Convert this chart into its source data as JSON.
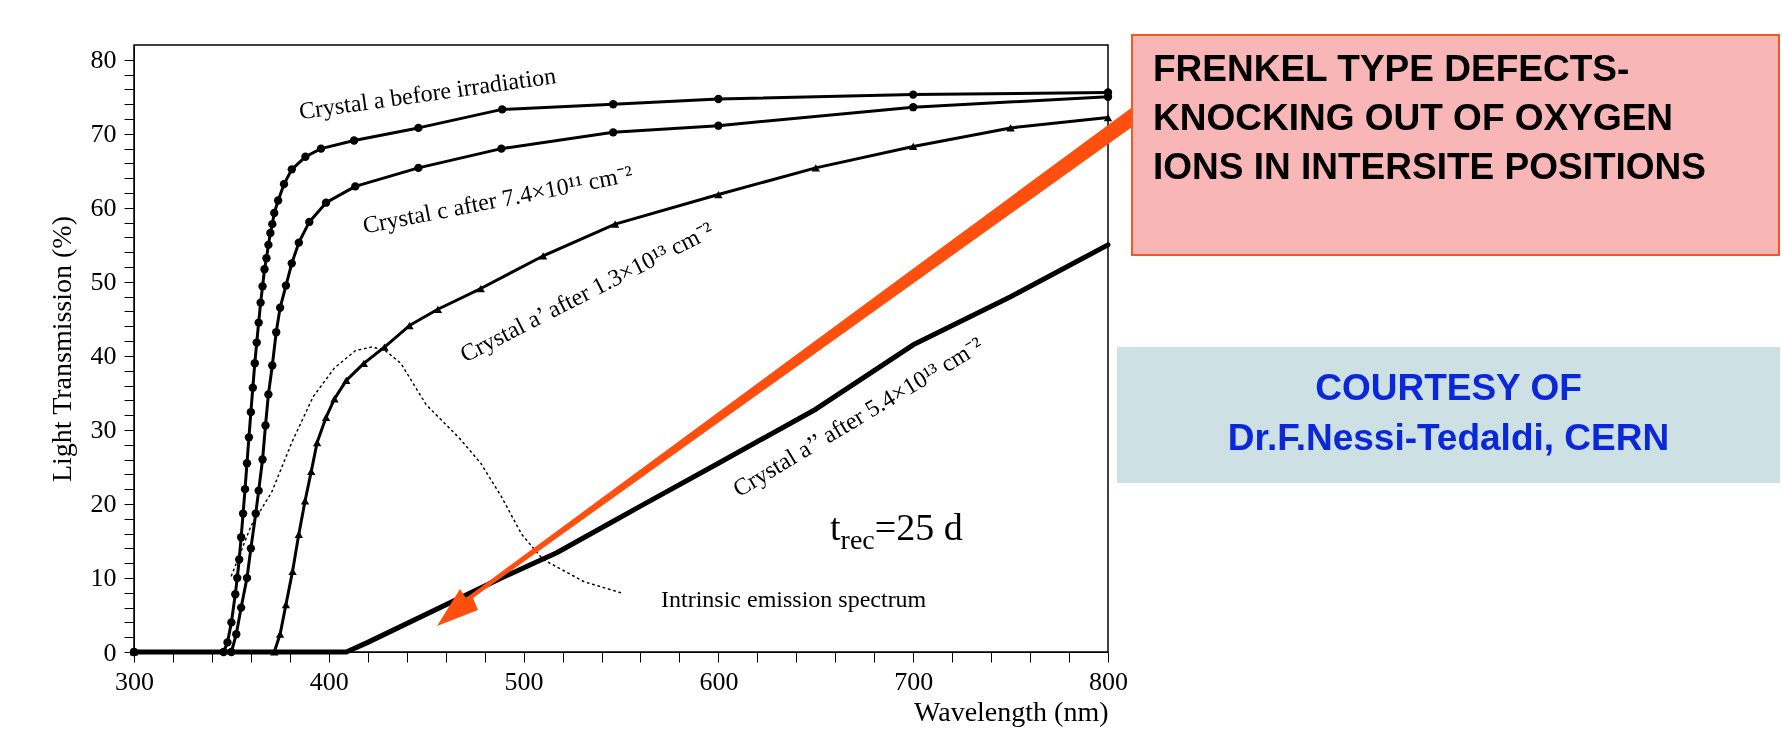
{
  "chart_data": {
    "type": "line",
    "xlabel": "Wavelength (nm)",
    "ylabel": "Light Transmission (%)",
    "xlim": [
      300,
      800
    ],
    "ylim": [
      0,
      82
    ],
    "xticks": [
      300,
      {
        "value": 320,
        "label": null
      },
      {
        "value": 340,
        "label": null
      },
      {
        "value": 360,
        "label": null
      },
      {
        "value": 380,
        "label": null
      },
      400,
      {
        "value": 420,
        "label": null
      },
      {
        "value": 440,
        "label": null
      },
      {
        "value": 460,
        "label": null
      },
      {
        "value": 480,
        "label": null
      },
      500,
      {
        "value": 520,
        "label": null
      },
      {
        "value": 540,
        "label": null
      },
      {
        "value": 560,
        "label": null
      },
      {
        "value": 580,
        "label": null
      },
      600,
      {
        "value": 620,
        "label": null
      },
      {
        "value": 640,
        "label": null
      },
      {
        "value": 660,
        "label": null
      },
      {
        "value": 680,
        "label": null
      },
      700,
      {
        "value": 720,
        "label": null
      },
      {
        "value": 740,
        "label": null
      },
      {
        "value": 760,
        "label": null
      },
      {
        "value": 780,
        "label": null
      },
      800
    ],
    "yticks": [
      0,
      {
        "value": 2,
        "label": null
      },
      {
        "value": 4,
        "label": null
      },
      {
        "value": 6,
        "label": null
      },
      {
        "value": 8,
        "label": null
      },
      10,
      {
        "value": 12,
        "label": null
      },
      {
        "value": 14,
        "label": null
      },
      {
        "value": 16,
        "label": null
      },
      {
        "value": 18,
        "label": null
      },
      20,
      {
        "value": 22,
        "label": null
      },
      {
        "value": 24,
        "label": null
      },
      {
        "value": 26,
        "label": null
      },
      {
        "value": 28,
        "label": null
      },
      30,
      {
        "value": 32,
        "label": null
      },
      {
        "value": 34,
        "label": null
      },
      {
        "value": 36,
        "label": null
      },
      {
        "value": 38,
        "label": null
      },
      40,
      {
        "value": 42,
        "label": null
      },
      {
        "value": 44,
        "label": null
      },
      {
        "value": 46,
        "label": null
      },
      {
        "value": 48,
        "label": null
      },
      50,
      {
        "value": 52,
        "label": null
      },
      {
        "value": 54,
        "label": null
      },
      {
        "value": 56,
        "label": null
      },
      {
        "value": 58,
        "label": null
      },
      60,
      {
        "value": 62,
        "label": null
      },
      {
        "value": 64,
        "label": null
      },
      {
        "value": 66,
        "label": null
      },
      {
        "value": 68,
        "label": null
      },
      70,
      {
        "value": 72,
        "label": null
      },
      {
        "value": 74,
        "label": null
      },
      {
        "value": 76,
        "label": null
      },
      {
        "value": 78,
        "label": null
      },
      80
    ],
    "series": [
      {
        "name": "Crystal a before irradiation",
        "color": "#000000",
        "marker": "circle",
        "x": [
          300,
          346,
          348,
          350,
          352,
          353,
          354,
          355,
          356,
          357,
          358,
          359,
          360,
          361,
          362,
          363,
          364,
          365,
          366,
          367,
          368,
          369,
          370,
          371,
          372,
          374,
          377,
          381,
          388,
          396,
          413,
          446,
          489,
          546,
          600,
          700,
          800
        ],
        "values": [
          0,
          0,
          1.3,
          4,
          7.8,
          10,
          12.5,
          15.5,
          18.7,
          22,
          25.5,
          29,
          32.4,
          35.7,
          39,
          41.8,
          44.5,
          47.2,
          49.4,
          51.7,
          53.2,
          55,
          56.6,
          57.8,
          59.3,
          61,
          63.2,
          65.2,
          66.9,
          68,
          69.1,
          70.8,
          73.3,
          74,
          74.7,
          75.3,
          75.6
        ]
      },
      {
        "name": "Crystal c after 7.4×10¹¹ cm⁻²",
        "color": "#000000",
        "marker": "circle",
        "x": [
          300,
          350,
          352.5,
          355,
          358,
          360,
          362.5,
          364,
          366,
          367.5,
          369,
          371,
          373,
          375,
          378,
          381,
          384.6,
          390,
          398.6,
          413.6,
          446,
          488.6,
          546,
          600,
          700,
          800
        ],
        "values": [
          0,
          0,
          2.4,
          6,
          10,
          14,
          18.7,
          21.8,
          26,
          30.6,
          34.8,
          38.7,
          43.2,
          46.5,
          49.5,
          52.5,
          55.3,
          58.1,
          60.7,
          62.9,
          65.4,
          68,
          70.2,
          71.1,
          73.6,
          75
        ]
      },
      {
        "name": "Crystal a’ after 1.3×10¹³ cm⁻²",
        "color": "#000000",
        "marker": "triangle",
        "x": [
          300,
          372,
          375,
          378,
          381.4,
          384.6,
          387.8,
          391,
          394,
          398.6,
          402.9,
          409,
          418,
          428.6,
          441.4,
          456,
          478,
          510,
          547,
          600,
          650,
          700,
          750,
          800
        ],
        "values": [
          0,
          0,
          2.4,
          6.4,
          10.9,
          15.9,
          20.4,
          24.4,
          28.3,
          31.7,
          34.2,
          36.7,
          39,
          41.2,
          44.1,
          46.3,
          49.1,
          53.5,
          57.8,
          61.8,
          65.4,
          68.3,
          70.8,
          72.2
        ]
      },
      {
        "name": "Crystal a’’ after 5.4×10¹³ cm⁻²",
        "color": "#000000",
        "marker": "none",
        "x": [
          300,
          409,
          420,
          488.6,
          517,
          547,
          560,
          600,
          650,
          700,
          750,
          800
        ],
        "values": [
          0,
          0,
          1.3,
          10,
          13.4,
          17.8,
          19.7,
          25.5,
          32.8,
          41.5,
          48,
          55
        ]
      },
      {
        "name": "Intrinsic emission spectrum",
        "color": "#000000",
        "marker": "none",
        "line_style": "dotted",
        "x": [
          350,
          360,
          370.7,
          381,
          392,
          403,
          413.6,
          422,
          428.6,
          437,
          450,
          467,
          478,
          488.6,
          499,
          510,
          531,
          550
        ],
        "values": [
          10.3,
          17,
          21.6,
          28.3,
          34.5,
          38.4,
          40.7,
          41.2,
          40.8,
          39,
          33.4,
          28.9,
          25.5,
          21,
          15.9,
          12.5,
          9.5,
          8
        ]
      }
    ],
    "annotations": [
      "t$_{rec}$=25 d",
      "FRENKEL TYPE DEFECTS-KNOCKING OUT OF OXYGEN IONS IN INTERSITE POSITIONS",
      "COURTESY OF\nDr.F.Nessi-Tedaldi, CERN"
    ]
  }
}
